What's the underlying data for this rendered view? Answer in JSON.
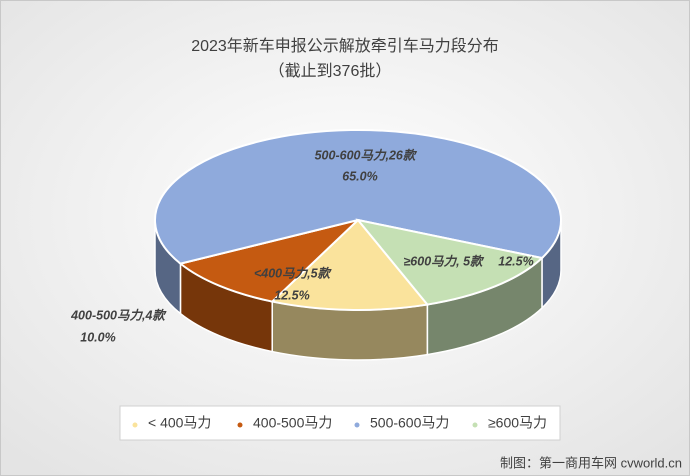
{
  "chart_data": {
    "type": "pie3d",
    "title": "2023年新车申报公示解放牵引车马力段分布",
    "subtitle": "（截止到376批）",
    "categories": [
      "< 400马力",
      "400-500马力",
      "500-600马力",
      "≥600马力"
    ],
    "values": [
      12.5,
      10.0,
      65.0,
      12.5
    ],
    "value_labels": [
      "12.5%",
      "10.0%",
      "65.0%",
      "12.5%"
    ],
    "data_labels": [
      "<400马力,5款",
      "400-500马力,4款",
      "500-600马力,26款",
      "≥600马力, 5款"
    ],
    "colors": [
      "#fae39c",
      "#c55a11",
      "#8faadc",
      "#c5e0b4"
    ],
    "legend": "bottom",
    "footer": "制图：第一商用车网 cvworld.cn"
  }
}
